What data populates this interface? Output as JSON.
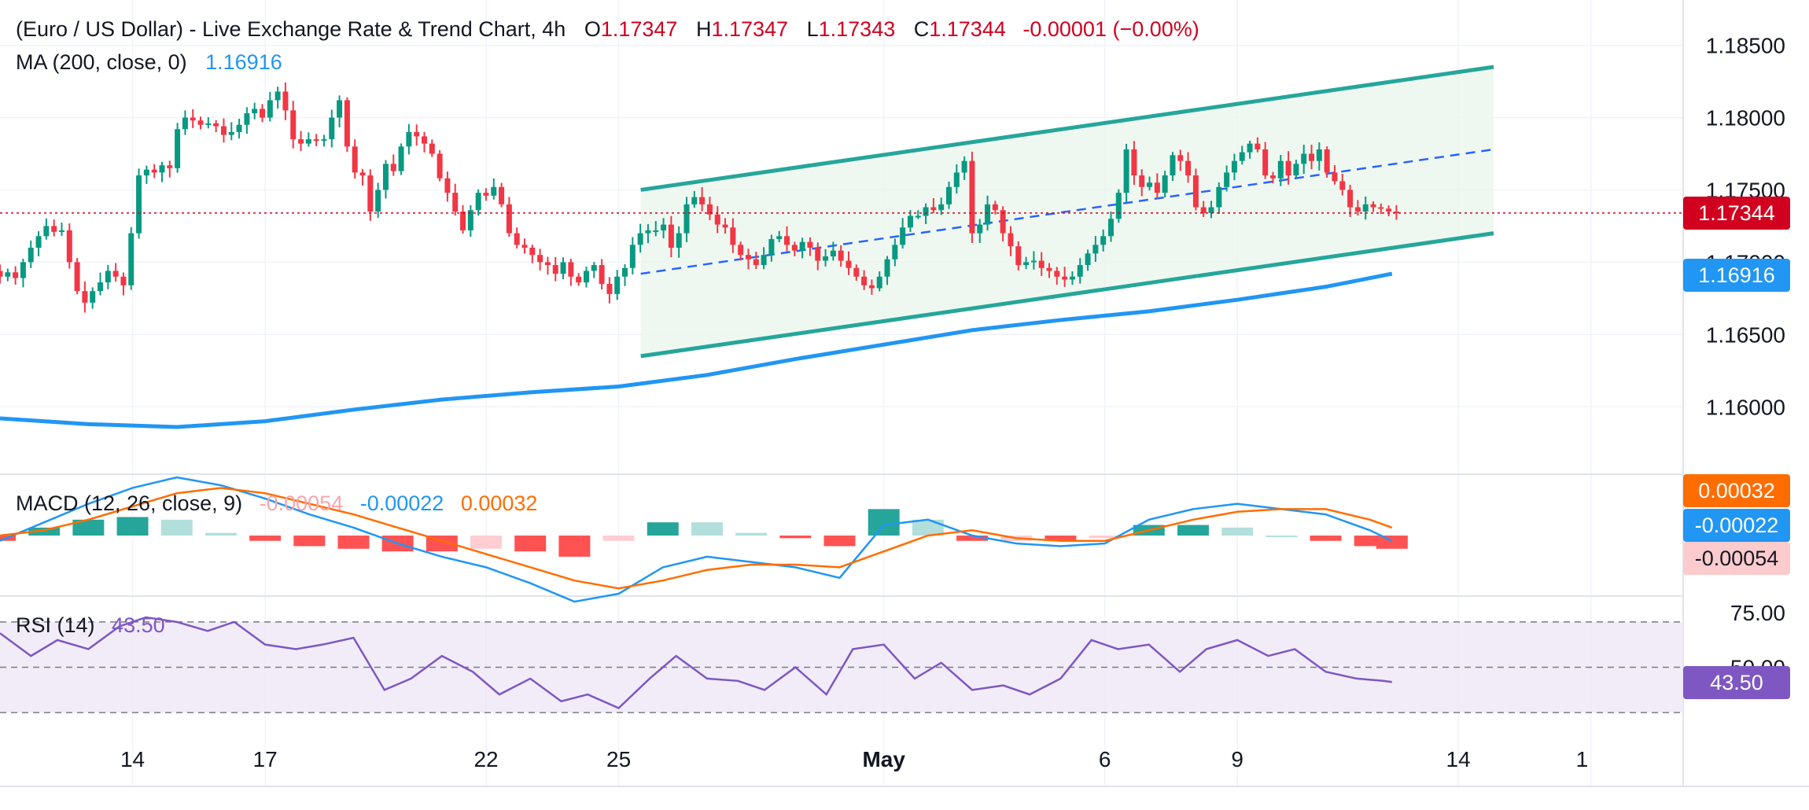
{
  "header": {
    "title": "(Euro / US Dollar) - Live Exchange Rate & Trend Chart, 4h",
    "o_label": "O",
    "o_value": "1.17347",
    "h_label": "H",
    "h_value": "1.17347",
    "l_label": "L",
    "l_value": "1.17343",
    "c_label": "C",
    "c_value": "1.17344",
    "change": "-0.00001 (−0.00%)",
    "ma_label": "MA (200, close, 0)",
    "ma_value": "1.16916",
    "macd_label": "MACD (12, 26, close, 9)",
    "macd_hist": "-0.00054",
    "macd_line": "-0.00022",
    "macd_signal": "0.00032",
    "rsi_label": "RSI (14)",
    "rsi_value": "43.50"
  },
  "price_tags": {
    "last": "1.17344",
    "ma": "1.16916",
    "macd_signal": "0.00032",
    "macd_line": "-0.00022",
    "macd_hist": "-0.00054",
    "rsi": "43.50"
  },
  "colors": {
    "up": "#089981",
    "down": "#f23645",
    "ma": "#2196f3",
    "channel": "#26a69a",
    "macd_line": "#2196f3",
    "signal": "#ff6d00",
    "rsi": "#7e57c2",
    "last": "#d1001f"
  },
  "chart_data": [
    {
      "type": "candlestick",
      "title": "(Euro / US Dollar) - Live Exchange Rate & Trend Chart, 4h",
      "x_ticks": [
        {
          "label": "14",
          "day": 13.0
        },
        {
          "label": "17",
          "day": 16.0
        },
        {
          "label": "22",
          "day": 21.0
        },
        {
          "label": "25",
          "day": 24.0
        },
        {
          "label": "May",
          "day": 30.0
        },
        {
          "label": "6",
          "day": 35.0
        },
        {
          "label": "9",
          "day": 38.0
        },
        {
          "label": "14",
          "day": 43.0
        },
        {
          "label": "1",
          "day": 46.0
        }
      ],
      "y_ticks": [
        1.16,
        1.165,
        1.17,
        1.175,
        1.18,
        1.185
      ],
      "y_tick_labels": [
        "1.16000",
        "1.16500",
        "1.17000",
        "1.17500",
        "1.18000",
        "1.18500"
      ],
      "ylim": [
        1.1555,
        1.1865
      ],
      "closes": [
        1.169,
        1.1693,
        1.1689,
        1.17,
        1.171,
        1.1718,
        1.1725,
        1.1721,
        1.1722,
        1.17,
        1.168,
        1.1672,
        1.168,
        1.1686,
        1.1694,
        1.169,
        1.1684,
        1.172,
        1.176,
        1.1764,
        1.1762,
        1.1767,
        1.1765,
        1.1792,
        1.18,
        1.1798,
        1.1795,
        1.1796,
        1.1794,
        1.1788,
        1.179,
        1.1795,
        1.1803,
        1.1806,
        1.18,
        1.1812,
        1.1818,
        1.1805,
        1.1785,
        1.1782,
        1.1785,
        1.1784,
        1.1785,
        1.18,
        1.1812,
        1.178,
        1.1762,
        1.176,
        1.1735,
        1.175,
        1.1768,
        1.1763,
        1.178,
        1.179,
        1.1787,
        1.1782,
        1.1775,
        1.1758,
        1.1748,
        1.1735,
        1.1722,
        1.1736,
        1.1748,
        1.1746,
        1.1752,
        1.174,
        1.172,
        1.1712,
        1.171,
        1.1705,
        1.17,
        1.1698,
        1.1692,
        1.17,
        1.169,
        1.1686,
        1.1694,
        1.1698,
        1.1685,
        1.1678,
        1.169,
        1.1696,
        1.1712,
        1.172,
        1.1722,
        1.1722,
        1.1726,
        1.171,
        1.172,
        1.174,
        1.1745,
        1.174,
        1.1733,
        1.1726,
        1.1724,
        1.1712,
        1.1705,
        1.1702,
        1.1698,
        1.1705,
        1.1716,
        1.1718,
        1.1712,
        1.1708,
        1.1714,
        1.171,
        1.1701,
        1.1704,
        1.1708,
        1.1701,
        1.1696,
        1.169,
        1.1684,
        1.1682,
        1.169,
        1.1702,
        1.1712,
        1.1724,
        1.1732,
        1.1732,
        1.1738,
        1.1736,
        1.174,
        1.1752,
        1.1762,
        1.177,
        1.172,
        1.1726,
        1.174,
        1.1736,
        1.172,
        1.1711,
        1.1698,
        1.17,
        1.1701,
        1.1696,
        1.1694,
        1.169,
        1.1688,
        1.169,
        1.1698,
        1.1706,
        1.1712,
        1.1718,
        1.173,
        1.1748,
        1.1778,
        1.176,
        1.1752,
        1.1755,
        1.1748,
        1.176,
        1.1774,
        1.177,
        1.176,
        1.1738,
        1.1734,
        1.1738,
        1.1752,
        1.1762,
        1.177,
        1.1776,
        1.1782,
        1.1778,
        1.176,
        1.1758,
        1.177,
        1.176,
        1.1768,
        1.1775,
        1.177,
        1.1778,
        1.1762,
        1.1756,
        1.175,
        1.1738,
        1.1735,
        1.174,
        1.1738,
        1.1737,
        1.1735,
        1.1734
      ]
    },
    {
      "type": "line",
      "name": "MA (200, close, 0)",
      "days": [
        10,
        12,
        14,
        16,
        18,
        20,
        22,
        24,
        26,
        28,
        30,
        32,
        34,
        36,
        38,
        40,
        41.5
      ],
      "values": [
        1.1592,
        1.1588,
        1.1586,
        1.159,
        1.1598,
        1.1605,
        1.161,
        1.1614,
        1.1622,
        1.1633,
        1.1643,
        1.1653,
        1.166,
        1.1666,
        1.1674,
        1.1683,
        1.1692
      ]
    },
    {
      "type": "line",
      "name": "MACD (12, 26, close, 9)",
      "ylim": [
        -0.0022,
        0.0022
      ],
      "days": [
        10,
        11,
        12,
        13,
        14,
        15,
        16,
        17,
        18,
        19,
        20,
        21,
        22,
        23,
        24,
        25,
        26,
        27,
        28,
        29,
        30,
        31,
        32,
        33,
        34,
        35,
        36,
        37,
        38,
        39,
        40,
        41,
        41.5
      ],
      "macd": [
        -0.0002,
        0.0005,
        0.0012,
        0.0018,
        0.0022,
        0.0019,
        0.0014,
        0.0008,
        0.0003,
        -0.0003,
        -0.0008,
        -0.0012,
        -0.0018,
        -0.0025,
        -0.0022,
        -0.0012,
        -0.0008,
        -0.001,
        -0.0012,
        -0.0016,
        0.0004,
        0.0006,
        0.0,
        -0.0003,
        -0.0004,
        -0.0003,
        0.0006,
        0.001,
        0.0012,
        0.001,
        0.0008,
        0.0002,
        -0.0002
      ],
      "signal": [
        0.0,
        0.0002,
        0.0006,
        0.0011,
        0.0016,
        0.0018,
        0.0016,
        0.0012,
        0.0008,
        0.0003,
        -0.0002,
        -0.0007,
        -0.0012,
        -0.0017,
        -0.002,
        -0.0017,
        -0.0013,
        -0.0011,
        -0.0011,
        -0.0012,
        -0.0006,
        0.0,
        0.0002,
        -0.0001,
        -0.0002,
        -0.0002,
        0.0002,
        0.0006,
        0.0009,
        0.001,
        0.001,
        0.0006,
        0.0003
      ]
    },
    {
      "type": "line",
      "name": "RSI (14)",
      "ylim": [
        20,
        80
      ],
      "levels": [
        70,
        50,
        30
      ],
      "level_labels": [
        "75.00",
        "50.00"
      ],
      "days": [
        10,
        10.7,
        11.3,
        12,
        12.7,
        13.3,
        14,
        14.7,
        15.3,
        16,
        16.7,
        17.3,
        18,
        18.7,
        19.3,
        20,
        20.7,
        21.3,
        22,
        22.7,
        23.3,
        24,
        24.7,
        25.3,
        26,
        26.7,
        27.3,
        28,
        28.7,
        29.3,
        30,
        30.7,
        31.3,
        32,
        32.7,
        33.3,
        34,
        34.7,
        35.3,
        36,
        36.7,
        37.3,
        38,
        38.7,
        39.3,
        40,
        40.7,
        41.3,
        41.5
      ],
      "values": [
        65,
        55,
        62,
        58,
        68,
        72,
        70,
        66,
        70,
        60,
        58,
        60,
        63,
        40,
        45,
        55,
        48,
        38,
        45,
        35,
        38,
        32,
        45,
        55,
        45,
        44,
        40,
        50,
        38,
        58,
        60,
        45,
        52,
        40,
        42,
        38,
        45,
        62,
        58,
        60,
        48,
        58,
        62,
        55,
        58,
        48,
        45,
        44,
        43.5
      ]
    }
  ]
}
